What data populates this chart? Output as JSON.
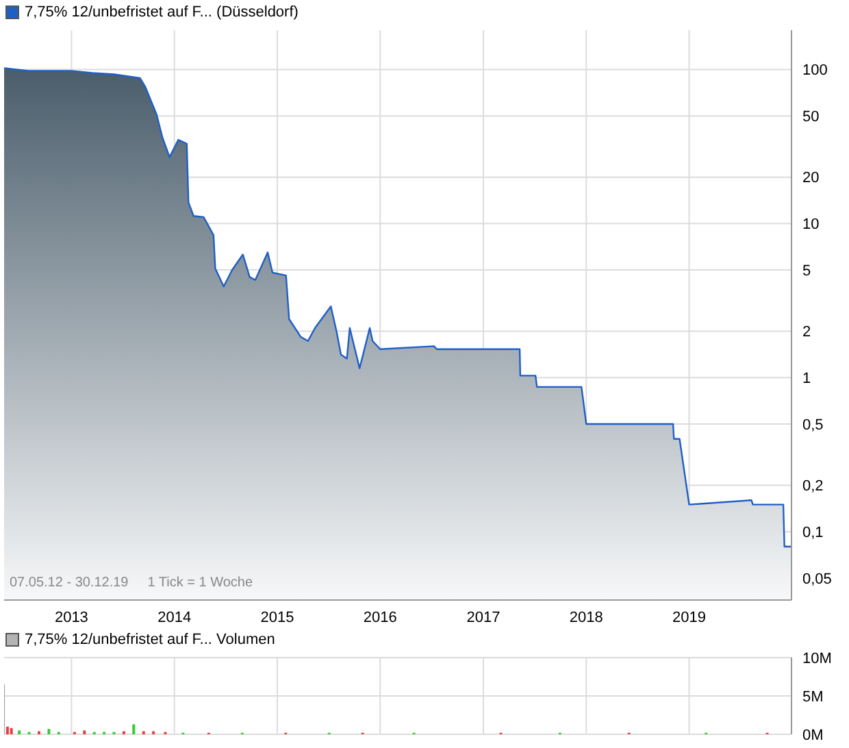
{
  "chart_data": [
    {
      "type": "area",
      "legend": "top left",
      "log": "y",
      "grid": true,
      "xlim": [
        "2012-05-07",
        "2019-12-30"
      ],
      "xticks": [
        {
          "value": "2013-01-01",
          "label": "2013"
        },
        {
          "value": "2014-01-01",
          "label": "2014"
        },
        {
          "value": "2015-01-01",
          "label": "2015"
        },
        {
          "value": "2016-01-01",
          "label": "2016"
        },
        {
          "value": "2017-01-01",
          "label": "2017"
        },
        {
          "value": "2018-01-01",
          "label": "2018"
        },
        {
          "value": "2019-01-01",
          "label": "2019"
        }
      ],
      "ylim": [
        0.036,
        180
      ],
      "yticks": [
        100,
        50,
        20,
        10,
        5,
        2,
        1,
        {
          "value": 0.5,
          "label": "0,5"
        },
        {
          "value": 0.2,
          "label": "0,2"
        },
        {
          "value": 0.1,
          "label": "0,1"
        },
        {
          "value": 0.05,
          "label": "0,05"
        }
      ],
      "annotations": [
        "07.05.12 - 30.12.19",
        "1 Tick = 1 Woche"
      ],
      "x": [
        "2012-05-07",
        "2012-08-01",
        "2012-12-31",
        "2013-03-15",
        "2013-06-01",
        "2013-09-01",
        "2013-09-20",
        "2013-10-30",
        "2013-11-20",
        "2013-12-15",
        "2014-01-15",
        "2014-02-14",
        "2014-02-20",
        "2014-03-10",
        "2014-04-15",
        "2014-05-20",
        "2014-05-26",
        "2014-06-25",
        "2014-07-25",
        "2014-09-01",
        "2014-09-25",
        "2014-10-15",
        "2014-11-28",
        "2014-12-15",
        "2015-02-01",
        "2015-02-12",
        "2015-03-25",
        "2015-04-20",
        "2015-05-15",
        "2015-07-10",
        "2015-07-30",
        "2015-08-15",
        "2015-09-05",
        "2015-09-15",
        "2015-10-20",
        "2015-11-25",
        "2015-12-05",
        "2016-01-01",
        "2016-07-10",
        "2016-07-20",
        "2017-05-10",
        "2017-05-12",
        "2017-07-05",
        "2017-07-10",
        "2017-12-15",
        "2018-01-01",
        "2018-11-05",
        "2018-11-08",
        "2018-11-28",
        "2019-01-01",
        "2019-08-10",
        "2019-08-15",
        "2019-12-01",
        "2019-12-05",
        "2019-12-30"
      ],
      "series": [
        {
          "name": "7,75% 12/unbefristet auf F... (Düsseldorf)",
          "color": "#1f5fc4",
          "values": [
            102,
            98,
            98,
            95,
            93,
            88,
            77,
            51,
            36,
            27,
            35,
            33,
            13.7,
            11.2,
            11,
            8.4,
            5.1,
            3.9,
            5,
            6.3,
            4.5,
            4.3,
            6.5,
            4.8,
            4.6,
            2.4,
            1.84,
            1.73,
            2.1,
            2.9,
            2,
            1.41,
            1.33,
            2.1,
            1.15,
            2.1,
            1.73,
            1.53,
            1.6,
            1.53,
            1.53,
            1.03,
            1.03,
            0.87,
            0.87,
            0.5,
            0.5,
            0.4,
            0.4,
            0.15,
            0.16,
            0.15,
            0.15,
            0.08,
            0.08
          ]
        }
      ]
    },
    {
      "type": "bar",
      "legend": "top left",
      "grid": true,
      "tick_labels": "y",
      "xlim": [
        "2012-05-07",
        "2019-12-30"
      ],
      "xticks": [
        {
          "value": "2013-01-01",
          "label": null
        },
        {
          "value": "2014-01-01",
          "label": null
        },
        {
          "value": "2015-01-01",
          "label": null
        },
        {
          "value": "2016-01-01",
          "label": null
        },
        {
          "value": "2017-01-01",
          "label": null
        },
        {
          "value": "2018-01-01",
          "label": null
        },
        {
          "value": "2019-01-01",
          "label": null
        }
      ],
      "ylim": [
        0,
        10000000
      ],
      "yticks": [
        {
          "value": 0,
          "label": "0M"
        },
        {
          "value": 5000000,
          "label": "5M"
        },
        {
          "value": 10000000,
          "label": "10M"
        }
      ],
      "x": [
        "2012-05-07",
        "2012-05-21",
        "2012-06-04",
        "2012-07-02",
        "2012-08-06",
        "2012-09-10",
        "2012-10-15",
        "2012-11-19",
        "2013-01-14",
        "2013-02-18",
        "2013-03-25",
        "2013-04-29",
        "2013-06-03",
        "2013-07-08",
        "2013-08-12",
        "2013-09-16",
        "2013-10-21",
        "2013-12-02",
        "2014-02-03",
        "2014-05-05",
        "2014-09-01",
        "2015-02-02",
        "2015-07-06",
        "2015-11-02",
        "2016-05-02",
        "2017-03-06",
        "2017-10-02",
        "2018-06-04",
        "2019-03-04",
        "2019-10-07"
      ],
      "series": [
        {
          "name": "7,75% 12/unbefristet auf F... Volumen",
          "color": "#b4b4b4",
          "values": [
            6500000,
            1000000,
            800000,
            500000,
            300000,
            400000,
            700000,
            300000,
            300000,
            500000,
            300000,
            300000,
            300000,
            400000,
            1300000,
            400000,
            400000,
            300000,
            200000,
            200000,
            200000,
            200000,
            200000,
            200000,
            200000,
            200000,
            200000,
            200000,
            200000,
            200000
          ],
          "colors": [
            "#a0a0a0",
            "#e84040",
            "#e84040",
            "#33cc33",
            "#33cc33",
            "#e84040",
            "#33cc33",
            "#33cc33",
            "#e84040",
            "#e84040",
            "#33cc33",
            "#33cc33",
            "#33cc33",
            "#e84040",
            "#33cc33",
            "#e84040",
            "#e84040",
            "#e84040",
            "#33cc33",
            "#e84040",
            "#33cc33",
            "#e84040",
            "#33cc33",
            "#e84040",
            "#33cc33",
            "#e84040",
            "#33cc33",
            "#e84040",
            "#33cc33",
            "#e84040"
          ]
        }
      ]
    }
  ]
}
